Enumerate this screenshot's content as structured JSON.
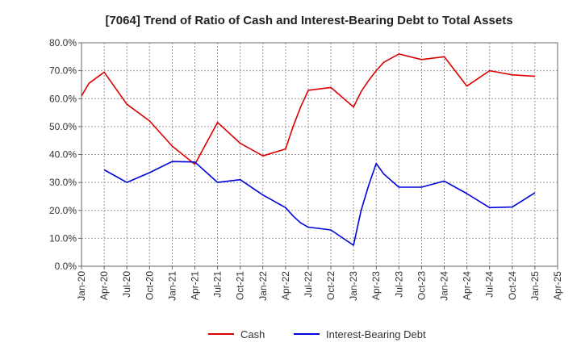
{
  "chart_data": {
    "type": "line",
    "title": "[7064]  Trend of Ratio of Cash and Interest-Bearing Debt to Total Assets",
    "xlabel": "",
    "ylabel": "",
    "ylim": [
      0,
      80
    ],
    "y_ticks": [
      "0.0%",
      "10.0%",
      "20.0%",
      "30.0%",
      "40.0%",
      "50.0%",
      "60.0%",
      "70.0%",
      "80.0%"
    ],
    "x_ticks": [
      "Jan-20",
      "Apr-20",
      "Jul-20",
      "Oct-20",
      "Jan-21",
      "Apr-21",
      "Jul-21",
      "Oct-21",
      "Jan-22",
      "Apr-22",
      "Jul-22",
      "Oct-22",
      "Jan-23",
      "Apr-23",
      "Jul-23",
      "Oct-23",
      "Jan-24",
      "Apr-24",
      "Jul-24",
      "Oct-24",
      "Jan-25",
      "Apr-25"
    ],
    "grid": true,
    "legend_position": "bottom",
    "series": [
      {
        "name": "Cash",
        "color": "#dd0000",
        "points": [
          [
            0,
            61.0
          ],
          [
            1,
            65.5
          ],
          [
            2,
            67.5
          ],
          [
            3,
            69.5
          ],
          [
            6,
            58.0
          ],
          [
            9,
            52.0
          ],
          [
            12,
            43.0
          ],
          [
            15,
            36.5
          ],
          [
            18,
            51.5
          ],
          [
            21,
            44.0
          ],
          [
            24,
            39.5
          ],
          [
            27,
            42.0
          ],
          [
            28,
            50.0
          ],
          [
            29,
            57.0
          ],
          [
            30,
            63.0
          ],
          [
            33,
            64.0
          ],
          [
            36,
            57.0
          ],
          [
            37,
            62.5
          ],
          [
            38,
            66.5
          ],
          [
            39,
            70.0
          ],
          [
            40,
            73.0
          ],
          [
            42,
            76.0
          ],
          [
            45,
            74.0
          ],
          [
            48,
            75.0
          ],
          [
            51,
            64.5
          ],
          [
            54,
            70.0
          ],
          [
            57,
            68.5
          ],
          [
            60,
            68.0
          ]
        ]
      },
      {
        "name": "Interest-Bearing Debt",
        "color": "#0000dd",
        "points": [
          [
            3,
            34.5
          ],
          [
            6,
            30.0
          ],
          [
            9,
            33.5
          ],
          [
            12,
            37.5
          ],
          [
            15,
            37.3
          ],
          [
            18,
            30.0
          ],
          [
            21,
            31.0
          ],
          [
            24,
            25.5
          ],
          [
            27,
            21.0
          ],
          [
            28,
            18.0
          ],
          [
            29,
            15.5
          ],
          [
            30,
            14.0
          ],
          [
            33,
            13.0
          ],
          [
            36,
            7.5
          ],
          [
            37,
            20.0
          ],
          [
            38,
            29.0
          ],
          [
            39,
            36.8
          ],
          [
            40,
            33.0
          ],
          [
            42,
            28.3
          ],
          [
            45,
            28.3
          ],
          [
            48,
            30.5
          ],
          [
            51,
            26.0
          ],
          [
            54,
            21.0
          ],
          [
            57,
            21.2
          ],
          [
            60,
            26.3
          ]
        ]
      }
    ]
  }
}
